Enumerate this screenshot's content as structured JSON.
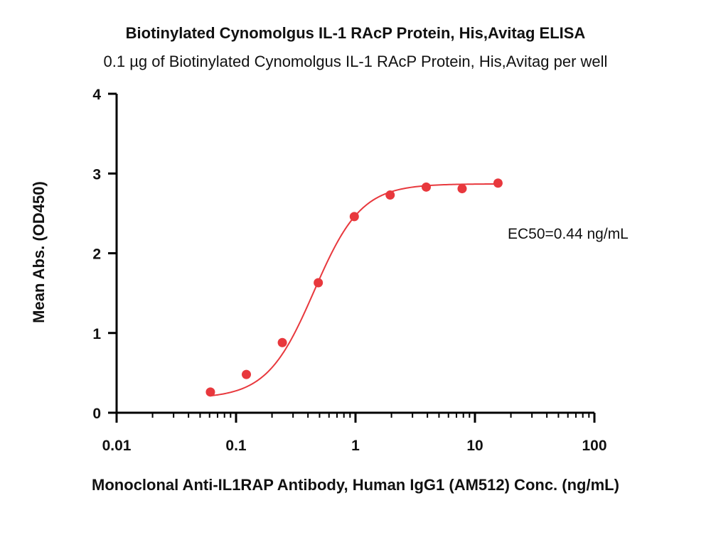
{
  "chart_data": {
    "type": "scatter",
    "title": "Biotinylated Cynomolgus IL-1 RAcP Protein, His,Avitag ELISA",
    "subtitle": "0.1 µg of Biotinylated Cynomolgus IL-1 RAcP Protein, His,Avitag per well",
    "xlabel": "Monoclonal Anti-IL1RAP Antibody, Human IgG1 (AM512) Conc. (ng/mL)",
    "ylabel": "Mean Abs. (OD450)",
    "x_scale": "log",
    "xlim": [
      0.01,
      100
    ],
    "ylim": [
      0,
      4
    ],
    "x_ticks": [
      0.01,
      0.1,
      1,
      10,
      100
    ],
    "x_tick_labels": [
      "0.01",
      "0.1",
      "1",
      "10",
      "100"
    ],
    "y_ticks": [
      0,
      1,
      2,
      3,
      4
    ],
    "y_tick_labels": [
      "0",
      "1",
      "2",
      "3",
      "4"
    ],
    "grid": false,
    "series": [
      {
        "x": [
          0.061,
          0.122,
          0.244,
          0.488,
          0.977,
          1.95,
          3.91,
          7.81,
          15.6
        ],
        "y": [
          0.26,
          0.48,
          0.88,
          1.63,
          2.46,
          2.73,
          2.83,
          2.81,
          2.88
        ],
        "color": "#e8383d",
        "fit": "4PL"
      }
    ],
    "annotation": "EC50=0.44 ng/mL"
  }
}
